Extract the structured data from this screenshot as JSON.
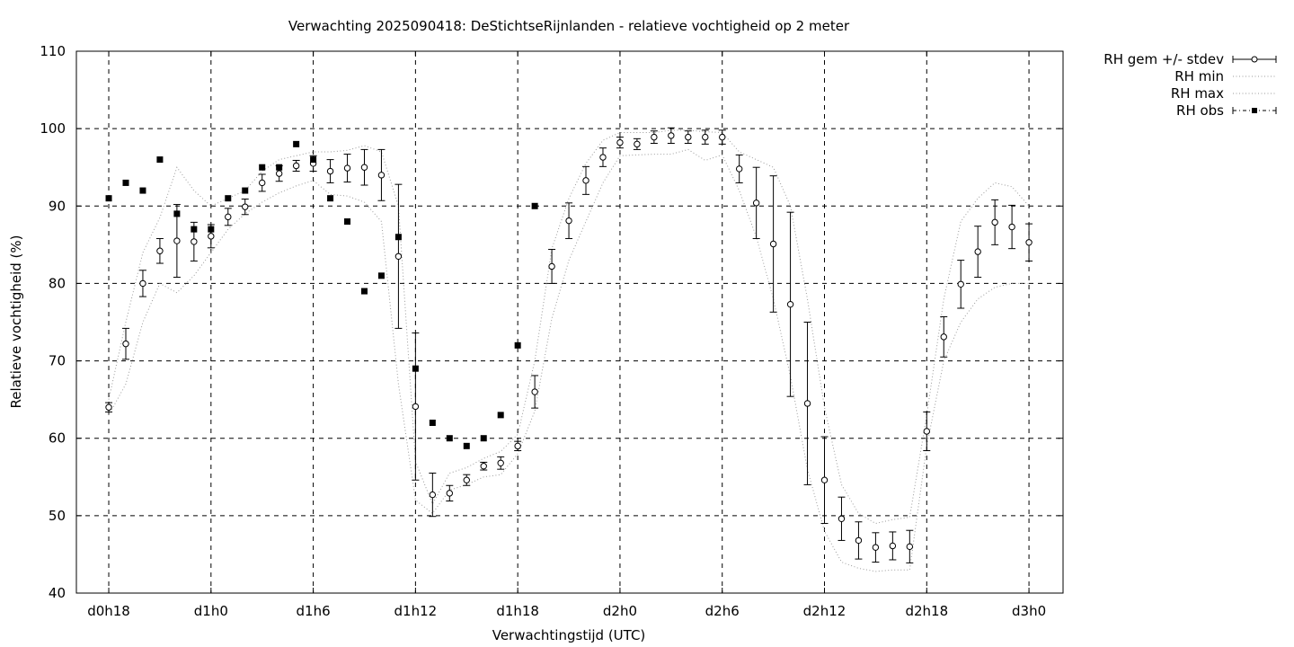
{
  "chart_data": {
    "type": "line",
    "title": "Verwachting 2025090418: DeStichtseRijnlanden - relatieve vochtigheid op 2 meter",
    "xlabel": "Verwachtingstijd (UTC)",
    "ylabel": "Relatieve vochtigheid (%)",
    "ylim": [
      40,
      110
    ],
    "y_ticks": [
      40,
      50,
      60,
      70,
      80,
      90,
      100,
      110
    ],
    "x_unit": "forecast step (hours after d0h18)",
    "xlim": [
      -1.9,
      56
    ],
    "x_ticks": [
      {
        "x": 0,
        "label": "d0h18"
      },
      {
        "x": 6,
        "label": "d1h0"
      },
      {
        "x": 12,
        "label": "d1h6"
      },
      {
        "x": 18,
        "label": "d1h12"
      },
      {
        "x": 24,
        "label": "d1h18"
      },
      {
        "x": 30,
        "label": "d2h0"
      },
      {
        "x": 36,
        "label": "d2h6"
      },
      {
        "x": 42,
        "label": "d2h12"
      },
      {
        "x": 48,
        "label": "d2h18"
      },
      {
        "x": 54,
        "label": "d3h0"
      }
    ],
    "grid": true,
    "legend_position": "outside-top-right",
    "series": [
      {
        "name": "RH gem +/- stdev",
        "style": "points-with-errorbars",
        "x": [
          0,
          1,
          2,
          3,
          4,
          5,
          6,
          7,
          8,
          9,
          10,
          11,
          12,
          13,
          14,
          15,
          16,
          17,
          18,
          19,
          20,
          21,
          22,
          23,
          24,
          25,
          26,
          27,
          28,
          29,
          30,
          31,
          32,
          33,
          34,
          35,
          36,
          37,
          38,
          39,
          40,
          41,
          42,
          43,
          44,
          45,
          46,
          47,
          48,
          49,
          50,
          51,
          52,
          53,
          54
        ],
        "y": [
          64,
          72.2,
          80,
          84.2,
          85.5,
          85.4,
          86.1,
          88.6,
          89.9,
          93,
          94.2,
          95.2,
          95.5,
          94.5,
          94.9,
          95,
          94,
          83.5,
          64.1,
          52.7,
          52.9,
          54.6,
          56.4,
          56.8,
          59,
          66,
          82.2,
          88.1,
          93.3,
          96.3,
          98.2,
          98,
          98.9,
          99.1,
          98.9,
          98.9,
          98.9,
          94.8,
          90.4,
          85.1,
          77.3,
          64.5,
          54.6,
          49.6,
          46.8,
          45.9,
          46.1,
          46,
          60.9,
          73.1,
          79.9,
          84.1,
          87.9,
          87.3,
          85.3
        ],
        "stdev": [
          0.6,
          2,
          1.7,
          1.6,
          4.7,
          2.5,
          1.5,
          1.1,
          1,
          1.1,
          1,
          0.7,
          1,
          1.5,
          1.8,
          2.3,
          3.3,
          9.3,
          9.5,
          2.8,
          1,
          0.7,
          0.5,
          0.8,
          0.6,
          2.1,
          2.2,
          2.3,
          1.8,
          1.2,
          0.7,
          0.7,
          0.8,
          1,
          0.8,
          0.9,
          0.9,
          1.8,
          4.6,
          8.8,
          11.9,
          10.5,
          5.6,
          2.8,
          2.4,
          1.9,
          1.8,
          2.1,
          2.5,
          2.6,
          3.1,
          3.3,
          2.9,
          2.8,
          2.4
        ]
      },
      {
        "name": "RH min",
        "style": "dotted",
        "x": [
          0,
          1,
          2,
          3,
          4,
          5,
          6,
          7,
          8,
          9,
          10,
          11,
          12,
          13,
          14,
          15,
          16,
          17,
          18,
          19,
          20,
          21,
          22,
          23,
          24,
          25,
          26,
          27,
          28,
          29,
          30,
          31,
          32,
          33,
          34,
          35,
          36,
          37,
          38,
          39,
          40,
          41,
          42,
          43,
          44,
          45,
          46,
          47,
          48,
          49,
          50,
          51,
          52,
          53,
          54
        ],
        "y": [
          63,
          67,
          75,
          80,
          78.8,
          81,
          84,
          87,
          89,
          90.5,
          91.7,
          92.6,
          93.3,
          91.5,
          91.3,
          90.5,
          88,
          67,
          52,
          50.3,
          53.3,
          54,
          55,
          55.3,
          58,
          63.5,
          75.5,
          83,
          88,
          93,
          96.5,
          96.6,
          96.7,
          96.7,
          97.3,
          95.9,
          96.6,
          92,
          86,
          78,
          68,
          56,
          48,
          44,
          43.2,
          42.8,
          43,
          43,
          59,
          70,
          75,
          78,
          79.5,
          80,
          80
        ]
      },
      {
        "name": "RH max",
        "style": "dotted",
        "x": [
          0,
          1,
          2,
          3,
          4,
          5,
          6,
          7,
          8,
          9,
          10,
          11,
          12,
          13,
          14,
          15,
          16,
          17,
          18,
          19,
          20,
          21,
          22,
          23,
          24,
          25,
          26,
          27,
          28,
          29,
          30,
          31,
          32,
          33,
          34,
          35,
          36,
          37,
          38,
          39,
          40,
          41,
          42,
          43,
          44,
          45,
          46,
          47,
          48,
          49,
          50,
          51,
          52,
          53,
          54
        ],
        "y": [
          65,
          75,
          84,
          88.5,
          95,
          92,
          90,
          91,
          92,
          94.5,
          96,
          96.5,
          97,
          97,
          97.2,
          97.8,
          97,
          90,
          57,
          51.5,
          55.5,
          56.2,
          57.4,
          58.3,
          60.5,
          70,
          84.5,
          91,
          95.5,
          98.5,
          99.5,
          99.5,
          99.5,
          99.8,
          99.8,
          99.6,
          99.5,
          97,
          96,
          95,
          90,
          78,
          64,
          54,
          50.3,
          49,
          49.5,
          49.8,
          63,
          78,
          88,
          91,
          93,
          92.5,
          90
        ]
      },
      {
        "name": "RH obs",
        "style": "filled-squares",
        "x": [
          0,
          1,
          2,
          3,
          4,
          5,
          6,
          7,
          8,
          9,
          10,
          11,
          12,
          13,
          14,
          15,
          16,
          17,
          18,
          19,
          20,
          21,
          22,
          23,
          24,
          25
        ],
        "y": [
          91,
          93,
          92,
          96,
          89,
          87,
          87,
          91,
          92,
          95,
          95,
          98,
          96,
          91,
          88,
          79,
          81,
          86,
          69,
          62,
          60,
          59,
          60,
          63,
          72,
          90
        ]
      }
    ]
  }
}
